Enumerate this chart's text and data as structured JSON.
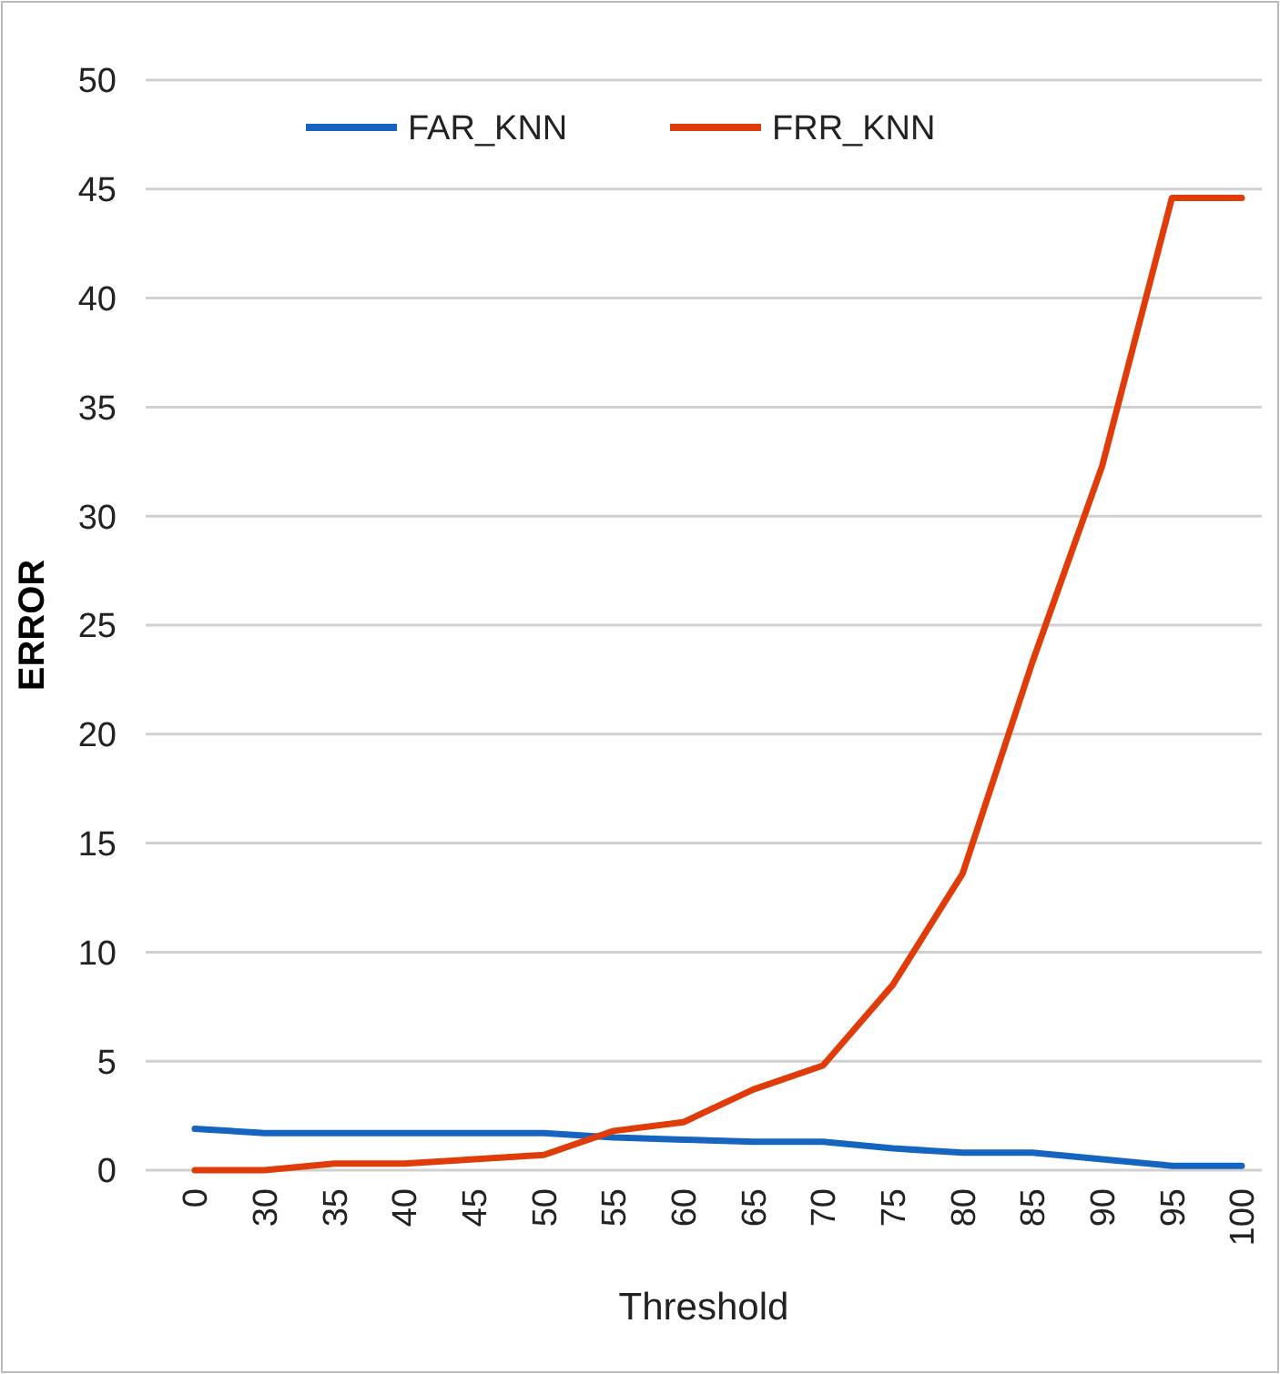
{
  "chart_data": {
    "type": "line",
    "xlabel": "Threshold",
    "ylabel": "ERROR",
    "categories": [
      "0",
      "30",
      "35",
      "40",
      "45",
      "50",
      "55",
      "60",
      "65",
      "70",
      "75",
      "80",
      "85",
      "90",
      "95",
      "100"
    ],
    "series": [
      {
        "name": "FAR_KNN",
        "color": "#1565c0",
        "values": [
          1.9,
          1.7,
          1.7,
          1.7,
          1.7,
          1.7,
          1.5,
          1.4,
          1.3,
          1.3,
          1.0,
          0.8,
          0.8,
          0.5,
          0.2,
          0.2
        ]
      },
      {
        "name": "FRR_KNN",
        "color": "#e03c0a",
        "values": [
          0,
          0,
          0.3,
          0.3,
          0.5,
          0.7,
          1.8,
          2.2,
          3.7,
          4.8,
          8.5,
          13.6,
          23.3,
          32.3,
          44.6,
          44.6
        ]
      }
    ],
    "ylim": [
      0,
      50
    ],
    "yticks": [
      0,
      5,
      10,
      15,
      20,
      25,
      30,
      35,
      40,
      45,
      50
    ],
    "grid": "y",
    "legend": "top",
    "marker": "none",
    "line_style": "solid"
  }
}
